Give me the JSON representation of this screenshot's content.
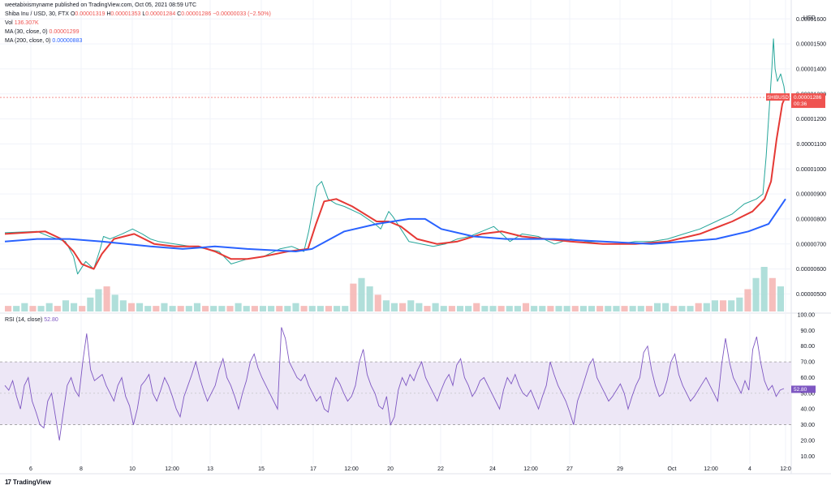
{
  "header": {
    "published": "weetabixismyname published on TradingView.com, Oct 05, 2021 08:59 UTC",
    "symbol": "Shiba Inu / USD, 30, FTX",
    "ohlc": {
      "o_label": "O",
      "o": "0.00001319",
      "h_label": "H",
      "h": "0.00001353",
      "l_label": "L",
      "l": "0.00001284",
      "c_label": "C",
      "c": "0.00001286",
      "change": "−0.00000033 (−2.50%)"
    },
    "vol_label": "Vol",
    "vol": "136.307K",
    "ma30_label": "MA (30, close, 0)",
    "ma30": "0.00001299",
    "ma200_label": "MA (200, close, 0)",
    "ma200": "0.00000883",
    "rsi_label": "RSI (14, close)",
    "rsi": "52.80"
  },
  "currency": "USD",
  "price_tag": {
    "symbol": "SHIBUSD",
    "price": "0.00001286",
    "countdown": "00:36"
  },
  "footer": {
    "logo": "17",
    "brand": "TradingView"
  },
  "colors": {
    "price": "#26a69a",
    "price_down": "#ef5350",
    "ma30": "#e53935",
    "ma200": "#2962ff",
    "rsi": "#7e57c2",
    "rsi_band": "#ede7f6",
    "volume_up": "#a7dcd6",
    "volume_down": "#f5b7b5"
  },
  "chart_data": {
    "type": "line",
    "x_ticks": [
      "6",
      "8",
      "10",
      "12:00",
      "13",
      "15",
      "17",
      "12:00",
      "20",
      "22",
      "24",
      "12:00",
      "27",
      "29",
      "Oct",
      "12:00",
      "4",
      "12:0"
    ],
    "price_axis": {
      "ticks": [
        "0.00001600",
        "0.00001500",
        "0.00001400",
        "0.00001300",
        "0.00001200",
        "0.00001100",
        "0.00001000",
        "0.00000900",
        "0.00000800",
        "0.00000700",
        "0.00000600",
        "0.00000500"
      ],
      "ylim": [
        4.3e-06,
        1.63e-05
      ]
    },
    "rsi_axis": {
      "ticks": [
        "100.00",
        "90.00",
        "80.00",
        "70.00",
        "60.00",
        "50.00",
        "40.00",
        "30.00",
        "20.00",
        "10.00"
      ],
      "ylim": [
        5,
        100
      ],
      "bands": [
        30,
        70
      ],
      "mid": 50
    },
    "series": [
      {
        "name": "Shiba Inu / USD",
        "points": [
          [
            0,
            7.45e-06
          ],
          [
            40,
            7.5e-06
          ],
          [
            55,
            7.3e-06
          ],
          [
            75,
            7.1e-06
          ],
          [
            85,
            6.5e-06
          ],
          [
            90,
            5.8e-06
          ],
          [
            100,
            6.3e-06
          ],
          [
            110,
            6e-06
          ],
          [
            118,
            6.8e-06
          ],
          [
            122,
            7.3e-06
          ],
          [
            130,
            7.2e-06
          ],
          [
            145,
            7.4e-06
          ],
          [
            158,
            7.6e-06
          ],
          [
            170,
            7.4e-06
          ],
          [
            180,
            7.2e-06
          ],
          [
            190,
            7.1e-06
          ],
          [
            210,
            7e-06
          ],
          [
            230,
            6.9e-06
          ],
          [
            250,
            6.8e-06
          ],
          [
            265,
            6.7e-06
          ],
          [
            280,
            6.2e-06
          ],
          [
            300,
            6.4e-06
          ],
          [
            320,
            6.5e-06
          ],
          [
            340,
            6.8e-06
          ],
          [
            355,
            6.9e-06
          ],
          [
            370,
            6.7e-06
          ],
          [
            376,
            7.5e-06
          ],
          [
            380,
            8.2e-06
          ],
          [
            386,
            9.3e-06
          ],
          [
            392,
            9.5e-06
          ],
          [
            400,
            8.8e-06
          ],
          [
            410,
            8.6e-06
          ],
          [
            420,
            8.5e-06
          ],
          [
            440,
            8.2e-06
          ],
          [
            458,
            7.8e-06
          ],
          [
            465,
            7.6e-06
          ],
          [
            475,
            8.3e-06
          ],
          [
            480,
            8.1e-06
          ],
          [
            490,
            7.6e-06
          ],
          [
            500,
            7.1e-06
          ],
          [
            515,
            7e-06
          ],
          [
            530,
            6.9e-06
          ],
          [
            545,
            7e-06
          ],
          [
            560,
            7.2e-06
          ],
          [
            575,
            7.3e-06
          ],
          [
            590,
            7.5e-06
          ],
          [
            605,
            7.7e-06
          ],
          [
            615,
            7.4e-06
          ],
          [
            625,
            7.1e-06
          ],
          [
            640,
            7.4e-06
          ],
          [
            660,
            7.3e-06
          ],
          [
            680,
            7e-06
          ],
          [
            700,
            7.2e-06
          ],
          [
            720,
            7.1e-06
          ],
          [
            740,
            7e-06
          ],
          [
            760,
            7e-06
          ],
          [
            780,
            7.1e-06
          ],
          [
            800,
            7.1e-06
          ],
          [
            820,
            7.2e-06
          ],
          [
            840,
            7.4e-06
          ],
          [
            860,
            7.6e-06
          ],
          [
            880,
            7.9e-06
          ],
          [
            900,
            8.2e-06
          ],
          [
            915,
            8.6e-06
          ],
          [
            930,
            8.8e-06
          ],
          [
            938,
            9e-06
          ],
          [
            942,
            1.05e-05
          ],
          [
            946,
            1.25e-05
          ],
          [
            949,
            1.4e-05
          ],
          [
            951,
            1.52e-05
          ],
          [
            953,
            1.4e-05
          ],
          [
            956,
            1.35e-05
          ],
          [
            960,
            1.38e-05
          ],
          [
            964,
            1.33e-05
          ],
          [
            966,
            1.28e-05
          ]
        ]
      },
      {
        "name": "MA (30, close, 0)",
        "points": [
          [
            0,
            7.4e-06
          ],
          [
            50,
            7.5e-06
          ],
          [
            70,
            7.2e-06
          ],
          [
            85,
            6.7e-06
          ],
          [
            95,
            6.2e-06
          ],
          [
            110,
            6e-06
          ],
          [
            120,
            6.6e-06
          ],
          [
            135,
            7.2e-06
          ],
          [
            160,
            7.4e-06
          ],
          [
            185,
            7e-06
          ],
          [
            210,
            6.9e-06
          ],
          [
            240,
            6.9e-06
          ],
          [
            260,
            6.7e-06
          ],
          [
            280,
            6.4e-06
          ],
          [
            300,
            6.4e-06
          ],
          [
            320,
            6.5e-06
          ],
          [
            350,
            6.7e-06
          ],
          [
            375,
            6.8e-06
          ],
          [
            385,
            7.8e-06
          ],
          [
            395,
            8.7e-06
          ],
          [
            410,
            8.8e-06
          ],
          [
            430,
            8.5e-06
          ],
          [
            460,
            7.9e-06
          ],
          [
            475,
            7.9e-06
          ],
          [
            490,
            7.7e-06
          ],
          [
            510,
            7.2e-06
          ],
          [
            535,
            7e-06
          ],
          [
            560,
            7.1e-06
          ],
          [
            590,
            7.4e-06
          ],
          [
            615,
            7.5e-06
          ],
          [
            640,
            7.3e-06
          ],
          [
            670,
            7.2e-06
          ],
          [
            700,
            7.1e-06
          ],
          [
            740,
            7e-06
          ],
          [
            780,
            7e-06
          ],
          [
            820,
            7.1e-06
          ],
          [
            860,
            7.4e-06
          ],
          [
            900,
            7.9e-06
          ],
          [
            925,
            8.3e-06
          ],
          [
            940,
            8.8e-06
          ],
          [
            948,
            9.5e-06
          ],
          [
            955,
            1.12e-05
          ],
          [
            962,
            1.26e-05
          ],
          [
            966,
            1.29e-05
          ]
        ]
      },
      {
        "name": "MA (200, close, 0)",
        "points": [
          [
            0,
            7.1e-06
          ],
          [
            40,
            7.2e-06
          ],
          [
            80,
            7.2e-06
          ],
          [
            120,
            7.1e-06
          ],
          [
            180,
            6.9e-06
          ],
          [
            220,
            6.8e-06
          ],
          [
            260,
            6.9e-06
          ],
          [
            300,
            6.8e-06
          ],
          [
            360,
            6.7e-06
          ],
          [
            380,
            6.8e-06
          ],
          [
            420,
            7.5e-06
          ],
          [
            460,
            7.8e-06
          ],
          [
            500,
            8e-06
          ],
          [
            520,
            8e-06
          ],
          [
            540,
            7.6e-06
          ],
          [
            580,
            7.3e-06
          ],
          [
            620,
            7.2e-06
          ],
          [
            680,
            7.2e-06
          ],
          [
            740,
            7.1e-06
          ],
          [
            800,
            7e-06
          ],
          [
            840,
            7.1e-06
          ],
          [
            880,
            7.2e-06
          ],
          [
            920,
            7.5e-06
          ],
          [
            945,
            7.8e-06
          ],
          [
            966,
            8.8e-06
          ]
        ]
      },
      {
        "name": "RSI (14, close)",
        "values": [
          55,
          52,
          58,
          48,
          40,
          55,
          60,
          45,
          38,
          30,
          28,
          45,
          50,
          35,
          20,
          38,
          55,
          60,
          52,
          48,
          70,
          88,
          65,
          58,
          60,
          62,
          55,
          50,
          45,
          55,
          60,
          48,
          42,
          30,
          40,
          55,
          58,
          62,
          50,
          45,
          52,
          60,
          55,
          48,
          40,
          35,
          48,
          55,
          62,
          70,
          60,
          52,
          45,
          50,
          55,
          65,
          72,
          60,
          55,
          48,
          40,
          50,
          58,
          70,
          75,
          66,
          60,
          55,
          50,
          45,
          40,
          92,
          85,
          70,
          65,
          60,
          58,
          62,
          55,
          50,
          45,
          48,
          40,
          38,
          52,
          60,
          56,
          50,
          45,
          48,
          55,
          70,
          78,
          62,
          55,
          50,
          42,
          40,
          48,
          30,
          35,
          52,
          60,
          55,
          62,
          58,
          65,
          70,
          60,
          55,
          50,
          45,
          52,
          58,
          62,
          55,
          68,
          72,
          60,
          55,
          48,
          52,
          58,
          60,
          55,
          50,
          45,
          40,
          52,
          60,
          56,
          62,
          55,
          50,
          48,
          52,
          46,
          40,
          48,
          55,
          70,
          62,
          55,
          50,
          45,
          38,
          30,
          45,
          52,
          60,
          68,
          72,
          60,
          55,
          50,
          45,
          48,
          52,
          56,
          50,
          40,
          48,
          55,
          60,
          76,
          80,
          65,
          55,
          48,
          50,
          58,
          70,
          75,
          62,
          55,
          50,
          45,
          48,
          52,
          56,
          60,
          55,
          50,
          45,
          68,
          85,
          70,
          60,
          55,
          50,
          58,
          52,
          78,
          86,
          70,
          58,
          52,
          55,
          48,
          52,
          53
        ]
      }
    ],
    "volume": {
      "note": "volume bars shown at bottom of price pane",
      "values": [
        2,
        2,
        3,
        2,
        2,
        3,
        2,
        4,
        3,
        2,
        5,
        8,
        9,
        6,
        4,
        3,
        3,
        2,
        2,
        3,
        2,
        2,
        2,
        3,
        2,
        2,
        2,
        2,
        3,
        2,
        2,
        2,
        2,
        2,
        2,
        3,
        2,
        2,
        2,
        2,
        2,
        2,
        10,
        12,
        9,
        6,
        4,
        3,
        3,
        4,
        3,
        2,
        3,
        2,
        2,
        2,
        2,
        3,
        2,
        2,
        2,
        2,
        2,
        3,
        2,
        2,
        2,
        2,
        2,
        2,
        2,
        2,
        2,
        2,
        2,
        2,
        2,
        2,
        2,
        3,
        3,
        2,
        2,
        2,
        3,
        3,
        4,
        4,
        4,
        5,
        8,
        12,
        16,
        12,
        9
      ]
    }
  }
}
